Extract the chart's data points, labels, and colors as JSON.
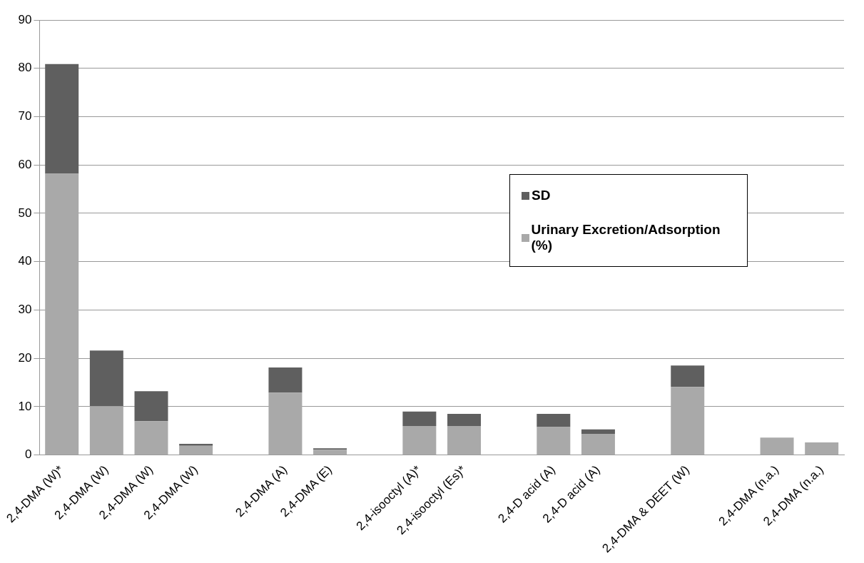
{
  "chart_data": {
    "type": "bar",
    "stacked": true,
    "categories": [
      "2,4-DMA (W)*",
      "2,4-DMA (W)",
      "2,4-DMA (W)",
      "2,4-DMA (W)",
      null,
      "2,4-DMA (A)",
      "2,4-DMA (E)",
      null,
      "2,4-isooctyl (A)*",
      "2,4-isooctyl (Es)*",
      null,
      "2,4-D acid (A)",
      "2,4-D acid (A)",
      null,
      "2,4-DMA & DEET (W)",
      null,
      "2,4-DMA (n.a.)",
      "2,4-DMA (n.a.)"
    ],
    "series": [
      {
        "name": "Urinary Excretion/Adsorption (%)",
        "color": "#a9a9a9",
        "values": [
          58.2,
          10.1,
          7.0,
          1.9,
          null,
          12.9,
          1.1,
          null,
          6.0,
          6.0,
          null,
          5.8,
          4.4,
          null,
          14.1,
          null,
          3.6,
          2.6
        ]
      },
      {
        "name": "SD",
        "color": "#5f5f5f",
        "values": [
          22.7,
          11.5,
          6.2,
          0.4,
          null,
          5.2,
          0.3,
          null,
          3.0,
          2.5,
          null,
          2.7,
          0.9,
          null,
          4.4,
          null,
          null,
          null
        ]
      }
    ],
    "ylim": [
      0,
      90
    ],
    "yticks": [
      0,
      10,
      20,
      30,
      40,
      50,
      60,
      70,
      80,
      90
    ],
    "grid": "y",
    "legend": "right"
  }
}
